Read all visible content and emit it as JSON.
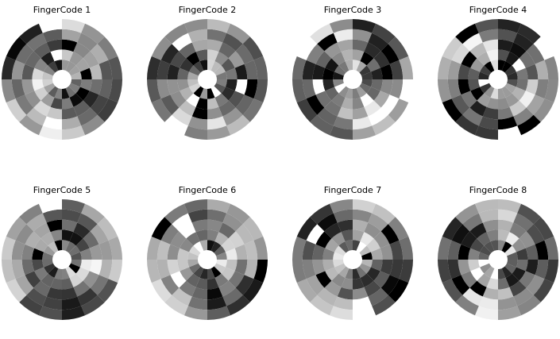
{
  "figure": {
    "panels": [
      {
        "title": "FingerCode 1"
      },
      {
        "title": "FingerCode 2"
      },
      {
        "title": "FingerCode 3"
      },
      {
        "title": "FingerCode 4"
      },
      {
        "title": "FingerCode 5"
      },
      {
        "title": "FingerCode 6"
      },
      {
        "title": "FingerCode 7"
      },
      {
        "title": "FingerCode 8"
      }
    ],
    "rings": 5,
    "sectors_per_ring": 16,
    "colormap": "grayscale"
  }
}
